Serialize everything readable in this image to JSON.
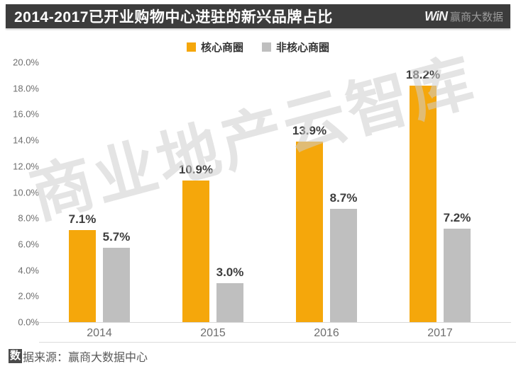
{
  "header": {
    "title": "2014-2017已开业购物中心进驻的新兴品牌占比",
    "logo_win": "WiN",
    "logo_brand": "赢商大数据"
  },
  "watermark": "商业地产云智库",
  "footer": {
    "source_prefix": "数",
    "source_rest": "据来源：赢商大数据中心"
  },
  "colors": {
    "header_bg": "#3c3c3c",
    "core": "#f5a70b",
    "non_core": "#bfbfbf"
  },
  "chart_data": {
    "type": "bar",
    "title": "2014-2017已开业购物中心进驻的新兴品牌占比",
    "categories": [
      "2014",
      "2015",
      "2016",
      "2017"
    ],
    "series": [
      {
        "name": "核心商圈",
        "color": "#f5a70b",
        "values": [
          7.1,
          10.9,
          13.9,
          18.2
        ],
        "labels": [
          "7.1%",
          "10.9%",
          "13.9%",
          "18.2%"
        ]
      },
      {
        "name": "非核心商圈",
        "color": "#bfbfbf",
        "values": [
          5.7,
          3.0,
          8.7,
          7.2
        ],
        "labels": [
          "5.7%",
          "3.0%",
          "8.7%",
          "7.2%"
        ]
      }
    ],
    "ylabel": "",
    "xlabel": "",
    "ylim": [
      0,
      20
    ],
    "y_tick_step": 2,
    "y_ticks": [
      "0.0%",
      "2.0%",
      "4.0%",
      "6.0%",
      "8.0%",
      "10.0%",
      "12.0%",
      "14.0%",
      "16.0%",
      "18.0%",
      "20.0%"
    ],
    "legend_position": "top",
    "grid": false
  }
}
